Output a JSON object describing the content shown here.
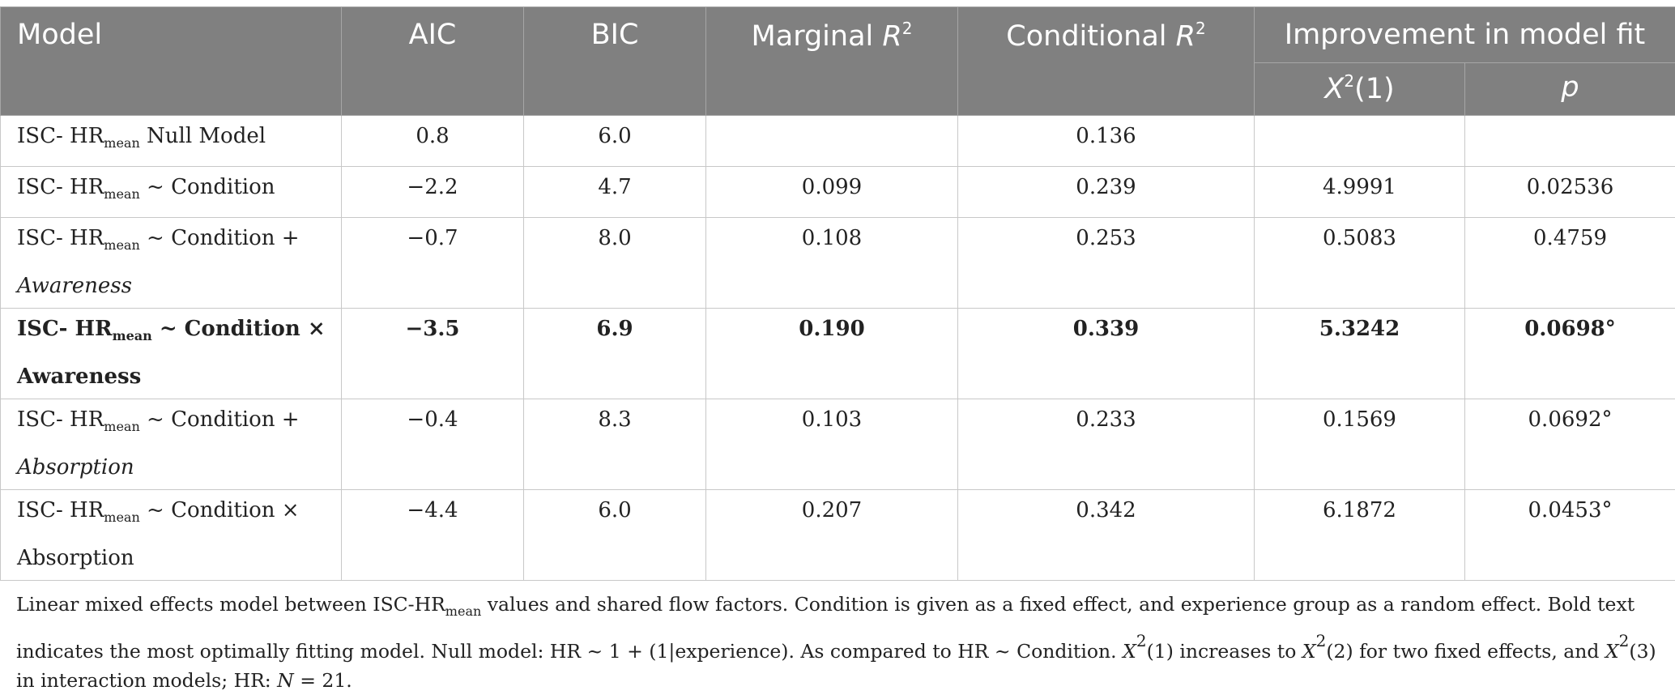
{
  "headers": {
    "model": "Model",
    "aic": "AIC",
    "bic": "BIC",
    "marginal": "Marginal ",
    "conditional": "Conditional ",
    "r": "R",
    "r_sup": "2",
    "improvement": "Improvement in model fit",
    "x": "X",
    "x_sup": "2",
    "x_arg": "(1)",
    "p": "p"
  },
  "rows": [
    {
      "prefix": "ISC- HR",
      "sub": "mean",
      "suffix": " Null Model",
      "suffix2": "",
      "aic": "0.8",
      "bic": "6.0",
      "marginal": "",
      "conditional": "0.136",
      "chi": "",
      "p": ""
    },
    {
      "prefix": "ISC- HR",
      "sub": "mean",
      "suffix": " ~ Condition",
      "suffix2": "",
      "aic": "−2.2",
      "bic": "4.7",
      "marginal": "0.099",
      "conditional": "0.239",
      "chi": "4.9991",
      "p": "0.02536"
    },
    {
      "prefix": "ISC- HR",
      "sub": "mean",
      "suffix": " ~ Condition +",
      "suffix2": "Awareness",
      "aic": "−0.7",
      "bic": "8.0",
      "marginal": "0.108",
      "conditional": "0.253",
      "chi": "0.5083",
      "p": "0.4759"
    },
    {
      "prefix": "ISC- HR",
      "sub": "mean",
      "suffix": " ~ Condition ×",
      "suffix2": "Awareness",
      "aic": "−3.5",
      "bic": "6.9",
      "marginal": "0.190",
      "conditional": "0.339",
      "chi": "5.3242",
      "p": "0.0698°"
    },
    {
      "prefix": "ISC- HR",
      "sub": "mean",
      "suffix": " ~ Condition +",
      "suffix2": "Absorption",
      "aic": "−0.4",
      "bic": "8.3",
      "marginal": "0.103",
      "conditional": "0.233",
      "chi": "0.1569",
      "p": "0.0692°"
    },
    {
      "prefix": "ISC- HR",
      "sub": "mean",
      "suffix": " ~ Condition ×",
      "suffix2": "Absorption",
      "aic": "−4.4",
      "bic": "6.0",
      "marginal": "0.207",
      "conditional": "0.342",
      "chi": "6.1872",
      "p": "0.0453°"
    }
  ],
  "footnote": {
    "part1": "Linear mixed effects model between ISC-HR",
    "sub": "mean",
    "part2": " values and shared flow factors. Condition is given as a fixed effect, and experience group as a random effect. Bold text indicates the most optimally fitting model. Null model: HR ~ 1 + (1|experience). As compared to HR ~ Condition. ",
    "x": "X",
    "sup": "2",
    "part3": "(1) increases to ",
    "part4": "(2) for two fixed effects, and ",
    "part5": "(3) in interaction models; HR: ",
    "n": "N",
    "part6": " = 21."
  },
  "colors": {
    "header_bg": "#808080",
    "header_text": "#ffffff",
    "border": "#c8c8c8"
  }
}
